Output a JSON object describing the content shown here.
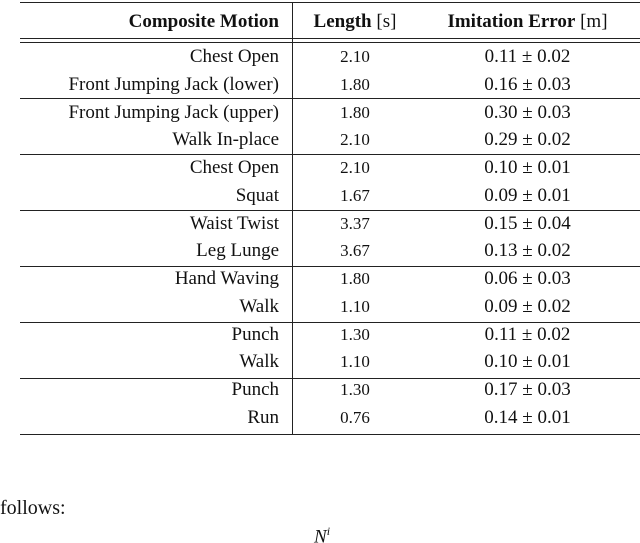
{
  "table": {
    "header": [
      {
        "bold": "Composite Motion"
      },
      {
        "bold": "Length",
        "unit": "[s]"
      },
      {
        "bold": "Imitation Error",
        "unit": "[m]"
      }
    ],
    "groups": [
      [
        [
          "Chest Open",
          "2.10",
          "0.11 ± 0.02"
        ],
        [
          "Front Jumping Jack (lower)",
          "1.80",
          "0.16 ± 0.03"
        ]
      ],
      [
        [
          "Front Jumping Jack (upper)",
          "1.80",
          "0.30 ± 0.03"
        ],
        [
          "Walk In-place",
          "2.10",
          "0.29 ± 0.02"
        ]
      ],
      [
        [
          "Chest Open",
          "2.10",
          "0.10 ± 0.01"
        ],
        [
          "Squat",
          "1.67",
          "0.09 ± 0.01"
        ]
      ],
      [
        [
          "Waist Twist",
          "3.37",
          "0.15 ± 0.04"
        ],
        [
          "Leg Lunge",
          "3.67",
          "0.13 ± 0.02"
        ]
      ],
      [
        [
          "Hand Waving",
          "1.80",
          "0.06 ± 0.03"
        ],
        [
          "Walk",
          "1.10",
          "0.09 ± 0.02"
        ]
      ],
      [
        [
          "Punch",
          "1.30",
          "0.11 ± 0.02"
        ],
        [
          "Walk",
          "1.10",
          "0.10 ± 0.01"
        ]
      ],
      [
        [
          "Punch",
          "1.30",
          "0.17 ± 0.03"
        ],
        [
          "Run",
          "0.76",
          "0.14 ± 0.01"
        ]
      ]
    ]
  },
  "text": {
    "paragraph": "follows:",
    "formula": {
      "base": "N",
      "sup": "i"
    }
  }
}
